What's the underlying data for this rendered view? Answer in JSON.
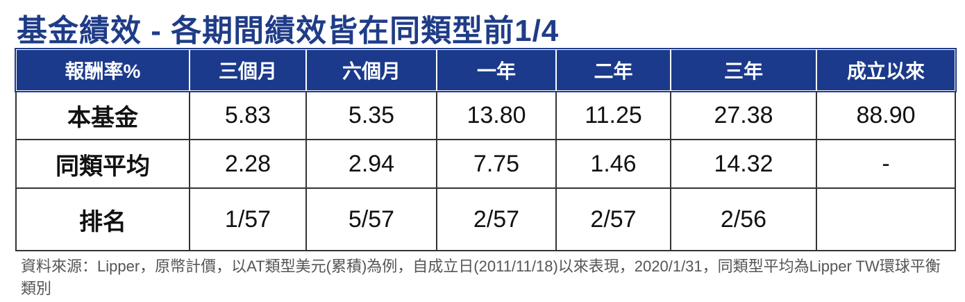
{
  "title": "基金績效 - 各期間績效皆在同類型前1/4",
  "table": {
    "header": [
      "報酬率%",
      "三個月",
      "六個月",
      "一年",
      "二年",
      "三年",
      "成立以來"
    ],
    "rows": [
      [
        "本基金",
        "5.83",
        "5.35",
        "13.80",
        "11.25",
        "27.38",
        "88.90"
      ],
      [
        "同類平均",
        "2.28",
        "2.94",
        "7.75",
        "1.46",
        "14.32",
        "-"
      ],
      [
        "排名",
        "1/57",
        "5/57",
        "2/57",
        "2/57",
        "2/56"
      ]
    ]
  },
  "footnote": "資料來源：Lipper，原幣計價，以AT類型美元(累積)為例，自成立日(2011/11/18)以來表現，2020/1/31，同類型平均為Lipper TW環球平衡類別"
}
